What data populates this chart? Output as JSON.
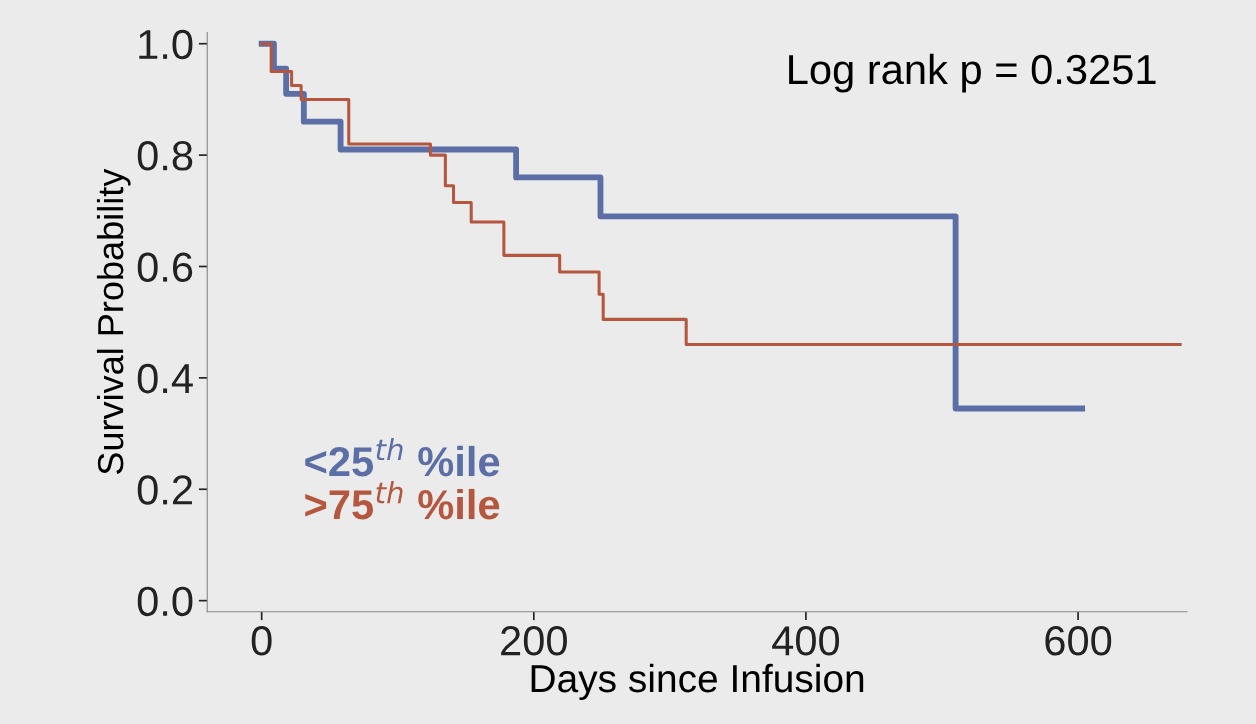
{
  "chart_data": {
    "type": "step",
    "xlabel": "Days since Infusion",
    "ylabel": "Survival Probability",
    "annotations": [
      "Log rank p = 0.3251"
    ],
    "xlim": [
      -40,
      680
    ],
    "xticks": [
      0,
      200,
      400,
      600
    ],
    "ylim": [
      -0.02,
      1.02
    ],
    "yticks": [
      {
        "value": 0,
        "label": "0.0"
      },
      0.2,
      0.4,
      0.6,
      0.8,
      {
        "value": 1,
        "label": "1.0"
      }
    ],
    "grid": false,
    "legend": "bottom left",
    "line_style": "solid",
    "marker": "none",
    "series": [
      {
        "name": "<25$^{th}$ %ile",
        "color": "#5b6fa6",
        "x": [
          0,
          9,
          18,
          31,
          58,
          187,
          249,
          510,
          603
        ],
        "values": [
          1.0,
          0.955,
          0.91,
          0.86,
          0.81,
          0.76,
          0.69,
          0.345,
          0.345
        ]
      },
      {
        "name": ">75$^{th}$ %ile",
        "color": "#b5573f",
        "x": [
          0,
          7,
          22,
          29,
          64,
          124,
          135,
          141,
          154,
          178,
          219,
          248,
          251,
          312,
          675
        ],
        "values": [
          1.0,
          0.95,
          0.925,
          0.9,
          0.82,
          0.8,
          0.745,
          0.715,
          0.68,
          0.62,
          0.59,
          0.55,
          0.505,
          0.46,
          0.46
        ]
      }
    ]
  }
}
